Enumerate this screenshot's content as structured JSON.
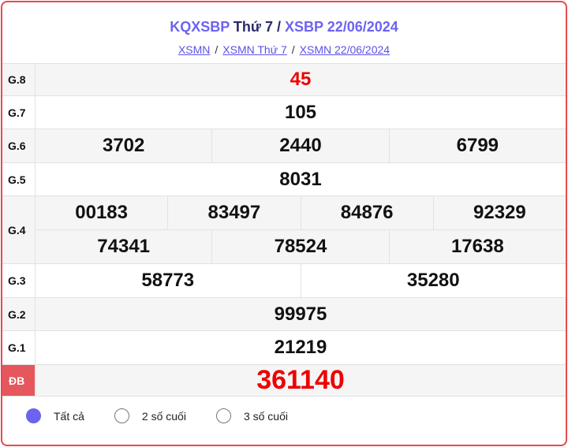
{
  "header": {
    "title_a": "KQXSBP",
    "title_b": "Thứ 7",
    "title_sep": "/",
    "title_c": "XSBP 22/06/2024"
  },
  "breadcrumb": [
    {
      "label": "XSMN"
    },
    {
      "label": "XSMN Thứ 7"
    },
    {
      "label": "XSMN 22/06/2024"
    }
  ],
  "breadcrumb_sep": "/",
  "prizes": [
    {
      "label": "G.8",
      "rows": [
        [
          "45"
        ]
      ]
    },
    {
      "label": "G.7",
      "rows": [
        [
          "105"
        ]
      ]
    },
    {
      "label": "G.6",
      "rows": [
        [
          "3702",
          "2440",
          "6799"
        ]
      ]
    },
    {
      "label": "G.5",
      "rows": [
        [
          "8031"
        ]
      ]
    },
    {
      "label": "G.4",
      "rows": [
        [
          "00183",
          "83497",
          "84876",
          "92329"
        ],
        [
          "74341",
          "78524",
          "17638"
        ]
      ]
    },
    {
      "label": "G.3",
      "rows": [
        [
          "58773",
          "35280"
        ]
      ]
    },
    {
      "label": "G.2",
      "rows": [
        [
          "99975"
        ]
      ]
    },
    {
      "label": "G.1",
      "rows": [
        [
          "21219"
        ]
      ]
    },
    {
      "label": "ĐB",
      "rows": [
        [
          "361140"
        ]
      ]
    }
  ],
  "filter_options": [
    {
      "label": "Tất cả",
      "selected": true
    },
    {
      "label": "2 số cuối",
      "selected": false
    },
    {
      "label": "3 số cuối",
      "selected": false
    }
  ],
  "colors": {
    "accent": "#6c63f0",
    "border": "#e5494f",
    "special": "#e00000"
  }
}
